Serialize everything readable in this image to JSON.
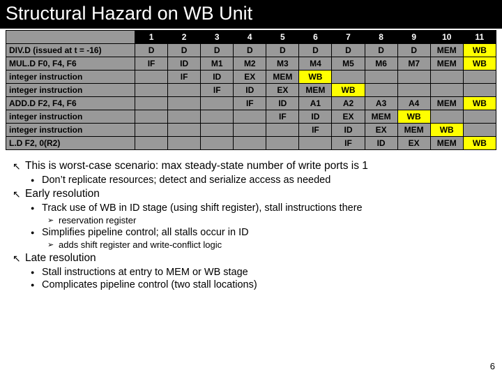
{
  "title": "Structural Hazard on WB Unit",
  "wb_highlight_color": "#ffff00",
  "cell_bg": "#999999",
  "header_bg": "#000000",
  "table": {
    "columns": [
      "1",
      "2",
      "3",
      "4",
      "5",
      "6",
      "7",
      "8",
      "9",
      "10",
      "11"
    ],
    "rows": [
      {
        "label": "DIV.D (issued at t = -16)",
        "cells": [
          "D",
          "D",
          "D",
          "D",
          "D",
          "D",
          "D",
          "D",
          "D",
          "MEM",
          "WB"
        ]
      },
      {
        "label": "MUL.D F0, F4, F6",
        "cells": [
          "IF",
          "ID",
          "M1",
          "M2",
          "M3",
          "M4",
          "M5",
          "M6",
          "M7",
          "MEM",
          "WB"
        ]
      },
      {
        "label": "integer instruction",
        "cells": [
          "",
          "IF",
          "ID",
          "EX",
          "MEM",
          "WB",
          "",
          "",
          "",
          "",
          ""
        ]
      },
      {
        "label": "integer instruction",
        "cells": [
          "",
          "",
          "IF",
          "ID",
          "EX",
          "MEM",
          "WB",
          "",
          "",
          "",
          ""
        ]
      },
      {
        "label": "ADD.D F2, F4, F6",
        "cells": [
          "",
          "",
          "",
          "IF",
          "ID",
          "A1",
          "A2",
          "A3",
          "A4",
          "MEM",
          "WB"
        ]
      },
      {
        "label": "integer instruction",
        "cells": [
          "",
          "",
          "",
          "",
          "IF",
          "ID",
          "EX",
          "MEM",
          "WB",
          "",
          ""
        ]
      },
      {
        "label": "integer instruction",
        "cells": [
          "",
          "",
          "",
          "",
          "",
          "IF",
          "ID",
          "EX",
          "MEM",
          "WB",
          ""
        ]
      },
      {
        "label": "L.D F2, 0(R2)",
        "cells": [
          "",
          "",
          "",
          "",
          "",
          "",
          "IF",
          "ID",
          "EX",
          "MEM",
          "WB"
        ]
      }
    ]
  },
  "bullets": {
    "b1": "This is worst-case scenario: max steady-state number of write ports is 1",
    "b1a": "Don’t replicate resources; detect and serialize access as needed",
    "b2": "Early resolution",
    "b2a": "Track use of WB in ID stage (using shift register), stall instructions there",
    "b2a1": "reservation register",
    "b2b": "Simplifies pipeline control; all stalls occur in ID",
    "b2b1": "adds shift register and write-conflict logic",
    "b3": "Late resolution",
    "b3a": "Stall instructions at entry to MEM or WB stage",
    "b3b": "Complicates pipeline control (two stall locations)"
  },
  "pagenum": "6"
}
